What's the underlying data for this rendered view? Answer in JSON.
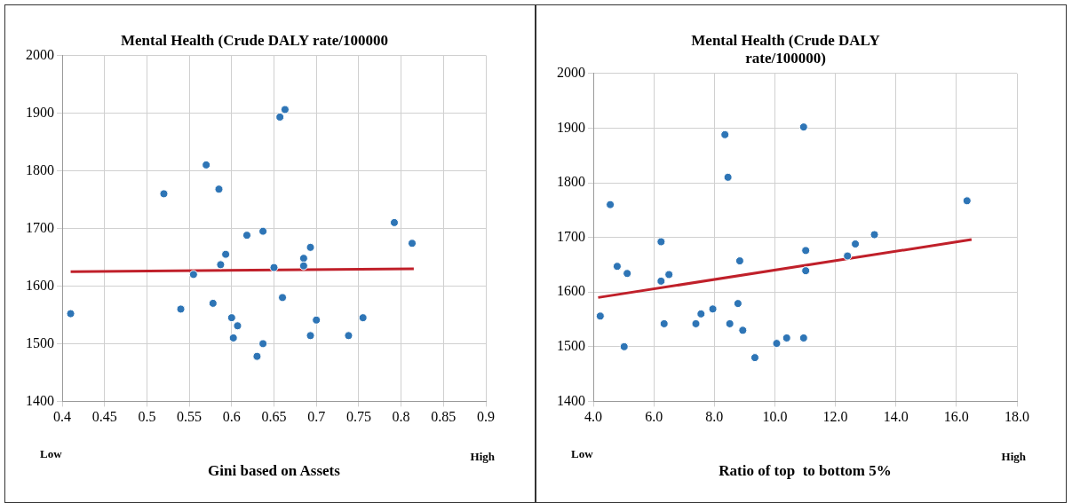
{
  "chart_data": [
    {
      "type": "scatter",
      "title": "Mental Health (Crude DALY rate/100000",
      "xlabel": "Gini based on Assets",
      "xlim": [
        0.4,
        0.9
      ],
      "xticks": [
        0.4,
        0.45,
        0.5,
        0.55,
        0.6,
        0.65,
        0.7,
        0.75,
        0.8,
        0.85,
        0.9
      ],
      "ylim": [
        1400,
        2000
      ],
      "yticks": [
        1400,
        1500,
        1600,
        1700,
        1800,
        1900,
        2000
      ],
      "grid": true,
      "legend": false,
      "annotations": [
        "Low",
        "High"
      ],
      "series": [
        {
          "type": "scatter",
          "marker": "circle",
          "color": "#2e75b6",
          "x": [
            0.41,
            0.52,
            0.54,
            0.555,
            0.57,
            0.578,
            0.585,
            0.587,
            0.593,
            0.6,
            0.602,
            0.607,
            0.618,
            0.63,
            0.637,
            0.637,
            0.65,
            0.657,
            0.663,
            0.66,
            0.685,
            0.685,
            0.693,
            0.693,
            0.7,
            0.738,
            0.755,
            0.792,
            0.813
          ],
          "values": [
            1552,
            1760,
            1560,
            1620,
            1810,
            1570,
            1768,
            1637,
            1655,
            1545,
            1510,
            1531,
            1688,
            1478,
            1695,
            1500,
            1632,
            1893,
            1906,
            1580,
            1648,
            1635,
            1667,
            1514,
            1541,
            1514,
            1545,
            1710,
            1674
          ]
        },
        {
          "type": "line",
          "color": "#c0202a",
          "x": [
            0.41,
            0.815
          ],
          "values": [
            1625,
            1630
          ]
        }
      ]
    },
    {
      "type": "scatter",
      "title": "Mental Health (Crude DALY rate/100000)",
      "xlabel": "Ratio of top  to bottom 5%",
      "xlim": [
        4,
        18
      ],
      "xticks": [
        {
          "value": 4,
          "label": "4.0"
        },
        {
          "value": 6,
          "label": "6.0"
        },
        {
          "value": 8,
          "label": "8.0"
        },
        {
          "value": 10,
          "label": "10.0"
        },
        {
          "value": 12,
          "label": "12.0"
        },
        {
          "value": 14,
          "label": "14.0"
        },
        {
          "value": 16,
          "label": "16.0"
        },
        {
          "value": 18,
          "label": "18.0"
        }
      ],
      "ylim": [
        1400,
        2000
      ],
      "yticks": [
        1400,
        1500,
        1600,
        1700,
        1800,
        1900,
        2000
      ],
      "grid": true,
      "legend": false,
      "annotations": [
        "Low",
        "High"
      ],
      "series": [
        {
          "type": "scatter",
          "marker": "circle",
          "color": "#2e75b6",
          "x": [
            4.23,
            4.56,
            4.79,
            5.02,
            5.12,
            6.24,
            6.24,
            6.34,
            6.5,
            7.39,
            7.56,
            7.95,
            8.35,
            8.45,
            8.51,
            8.78,
            8.84,
            8.94,
            9.34,
            10.06,
            10.39,
            10.95,
            10.95,
            11.02,
            11.02,
            12.4,
            12.66,
            13.29,
            16.35
          ],
          "values": [
            1556,
            1760,
            1647,
            1500,
            1634,
            1692,
            1620,
            1542,
            1632,
            1542,
            1560,
            1569,
            1888,
            1810,
            1542,
            1579,
            1657,
            1530,
            1480,
            1506,
            1516,
            1902,
            1516,
            1639,
            1676,
            1666,
            1688,
            1705,
            1767
          ]
        },
        {
          "type": "line",
          "color": "#c0202a",
          "x": [
            4.16,
            16.5
          ],
          "values": [
            1590,
            1696
          ]
        }
      ]
    }
  ]
}
